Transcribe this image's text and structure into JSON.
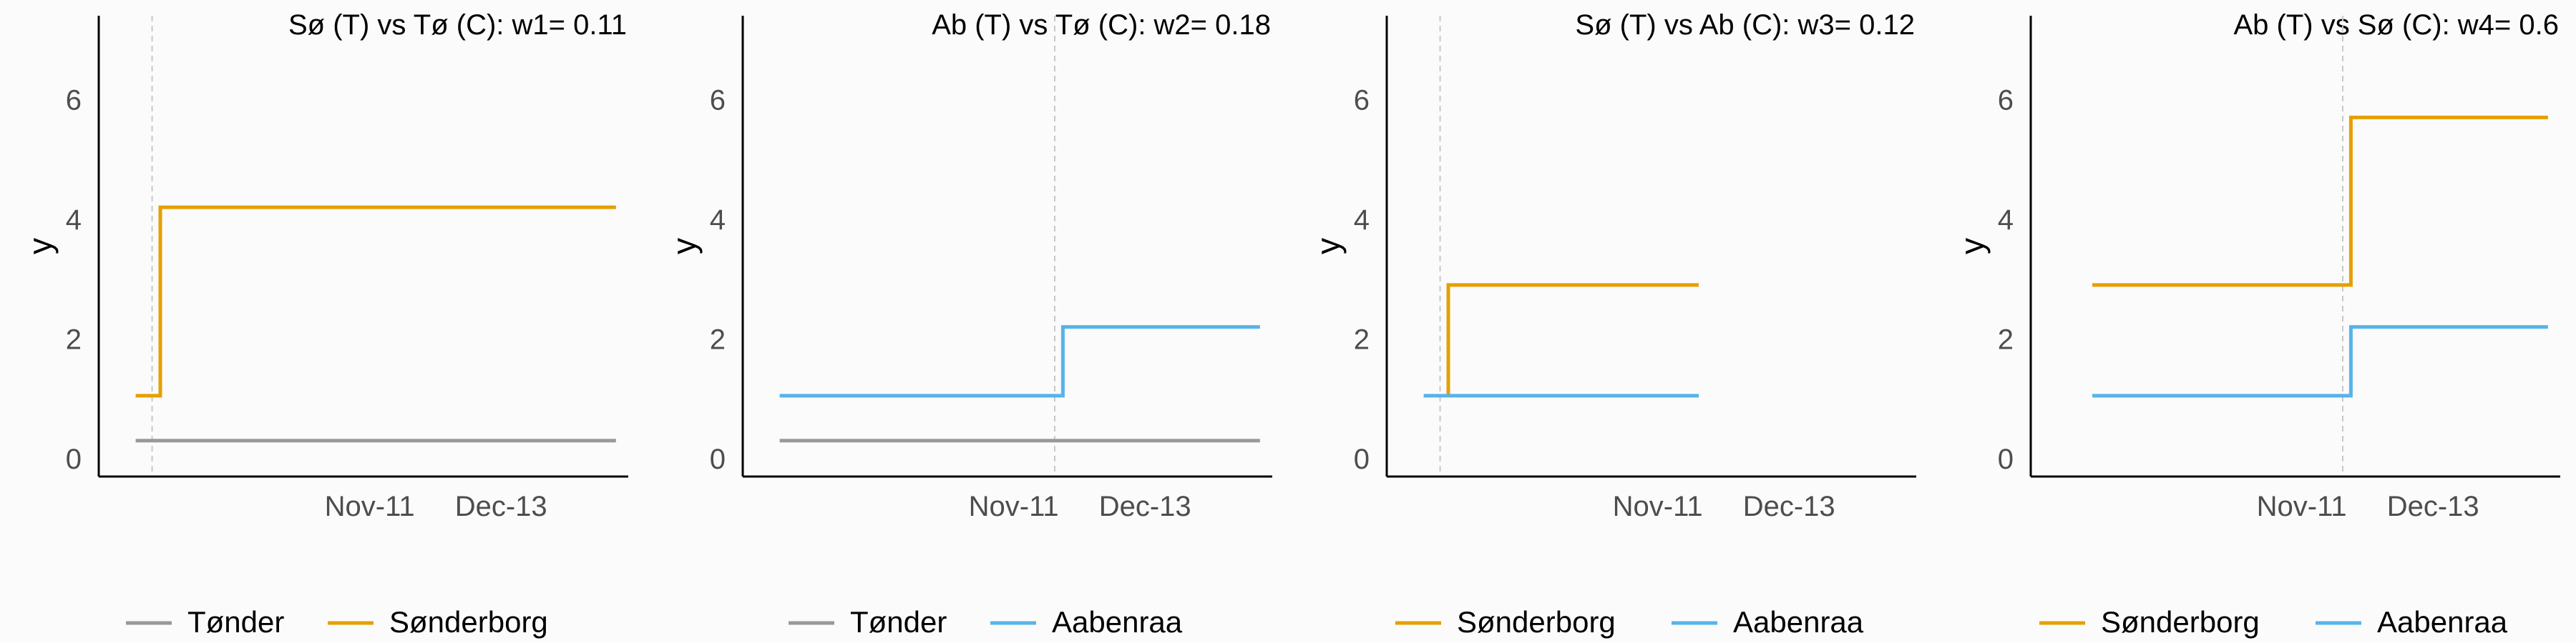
{
  "chart_data": [
    {
      "type": "line",
      "title": "Sø (T) vs Tø (C): w1= 0.11",
      "ylabel": "y",
      "xlabel": "",
      "ylim": [
        -0.3,
        7.4
      ],
      "yticks": [
        0,
        2,
        4,
        6
      ],
      "xlim": [
        "2011-09-06",
        "2012-01-13"
      ],
      "xticks": [
        {
          "date": "2011-11-11",
          "label": "Nov-11"
        },
        {
          "date": "2011-12-13",
          "label": "Dec-13"
        }
      ],
      "treatment_date": "2011-09-19",
      "grid": false,
      "legend_position": "bottom",
      "series": [
        {
          "name": "Tønder",
          "color": "#999999",
          "points": [
            [
              "2011-09-15",
              0.3
            ],
            [
              "2012-01-10",
              0.3
            ]
          ]
        },
        {
          "name": "Sønderborg",
          "color": "#E69F00",
          "points": [
            [
              "2011-09-15",
              1.05
            ],
            [
              "2011-09-21",
              1.05
            ],
            [
              "2011-09-21",
              4.2
            ],
            [
              "2012-01-10",
              4.2
            ]
          ]
        }
      ]
    },
    {
      "type": "line",
      "title": "Ab (T) vs Tø (C): w2= 0.18",
      "ylabel": "y",
      "xlabel": "",
      "ylim": [
        -0.3,
        7.4
      ],
      "yticks": [
        0,
        2,
        4,
        6
      ],
      "xlim": [
        "2011-09-06",
        "2012-01-13"
      ],
      "xticks": [
        {
          "date": "2011-11-11",
          "label": "Nov-11"
        },
        {
          "date": "2011-12-13",
          "label": "Dec-13"
        }
      ],
      "treatment_date": "2011-11-21",
      "grid": false,
      "legend_position": "bottom",
      "series": [
        {
          "name": "Tønder",
          "color": "#999999",
          "points": [
            [
              "2011-09-15",
              0.3
            ],
            [
              "2012-01-10",
              0.3
            ]
          ]
        },
        {
          "name": "Aabenraa",
          "color": "#56B4E9",
          "points": [
            [
              "2011-09-15",
              1.05
            ],
            [
              "2011-11-23",
              1.05
            ],
            [
              "2011-11-23",
              2.2
            ],
            [
              "2012-01-10",
              2.2
            ]
          ]
        }
      ]
    },
    {
      "type": "line",
      "title": "Sø (T) vs Ab (C): w3= 0.12",
      "ylabel": "y",
      "xlabel": "",
      "ylim": [
        -0.3,
        7.4
      ],
      "yticks": [
        0,
        2,
        4,
        6
      ],
      "xlim": [
        "2011-09-06",
        "2012-01-13"
      ],
      "xticks": [
        {
          "date": "2011-11-11",
          "label": "Nov-11"
        },
        {
          "date": "2011-12-13",
          "label": "Dec-13"
        }
      ],
      "treatment_date": "2011-09-19",
      "grid": false,
      "legend_position": "bottom",
      "series": [
        {
          "name": "Sønderborg",
          "color": "#E69F00",
          "points": [
            [
              "2011-09-21",
              1.05
            ],
            [
              "2011-09-21",
              2.9
            ],
            [
              "2011-11-21",
              2.9
            ]
          ]
        },
        {
          "name": "Aabenraa",
          "color": "#56B4E9",
          "points": [
            [
              "2011-09-15",
              1.05
            ],
            [
              "2011-11-21",
              1.05
            ]
          ]
        }
      ]
    },
    {
      "type": "line",
      "title": "Ab (T) vs Sø (C): w4= 0.6",
      "ylabel": "y",
      "xlabel": "",
      "ylim": [
        -0.3,
        7.4
      ],
      "yticks": [
        0,
        2,
        4,
        6
      ],
      "xlim": [
        "2011-09-06",
        "2012-01-13"
      ],
      "xticks": [
        {
          "date": "2011-11-11",
          "label": "Nov-11"
        },
        {
          "date": "2011-12-13",
          "label": "Dec-13"
        }
      ],
      "treatment_date": "2011-11-21",
      "grid": false,
      "legend_position": "bottom",
      "series": [
        {
          "name": "Sønderborg",
          "color": "#E69F00",
          "points": [
            [
              "2011-09-21",
              2.9
            ],
            [
              "2011-11-23",
              2.9
            ],
            [
              "2011-11-23",
              5.7
            ],
            [
              "2012-01-10",
              5.7
            ]
          ]
        },
        {
          "name": "Aabenraa",
          "color": "#56B4E9",
          "points": [
            [
              "2011-09-21",
              1.05
            ],
            [
              "2011-11-23",
              1.05
            ],
            [
              "2011-11-23",
              2.2
            ],
            [
              "2012-01-10",
              2.2
            ]
          ]
        }
      ]
    }
  ]
}
